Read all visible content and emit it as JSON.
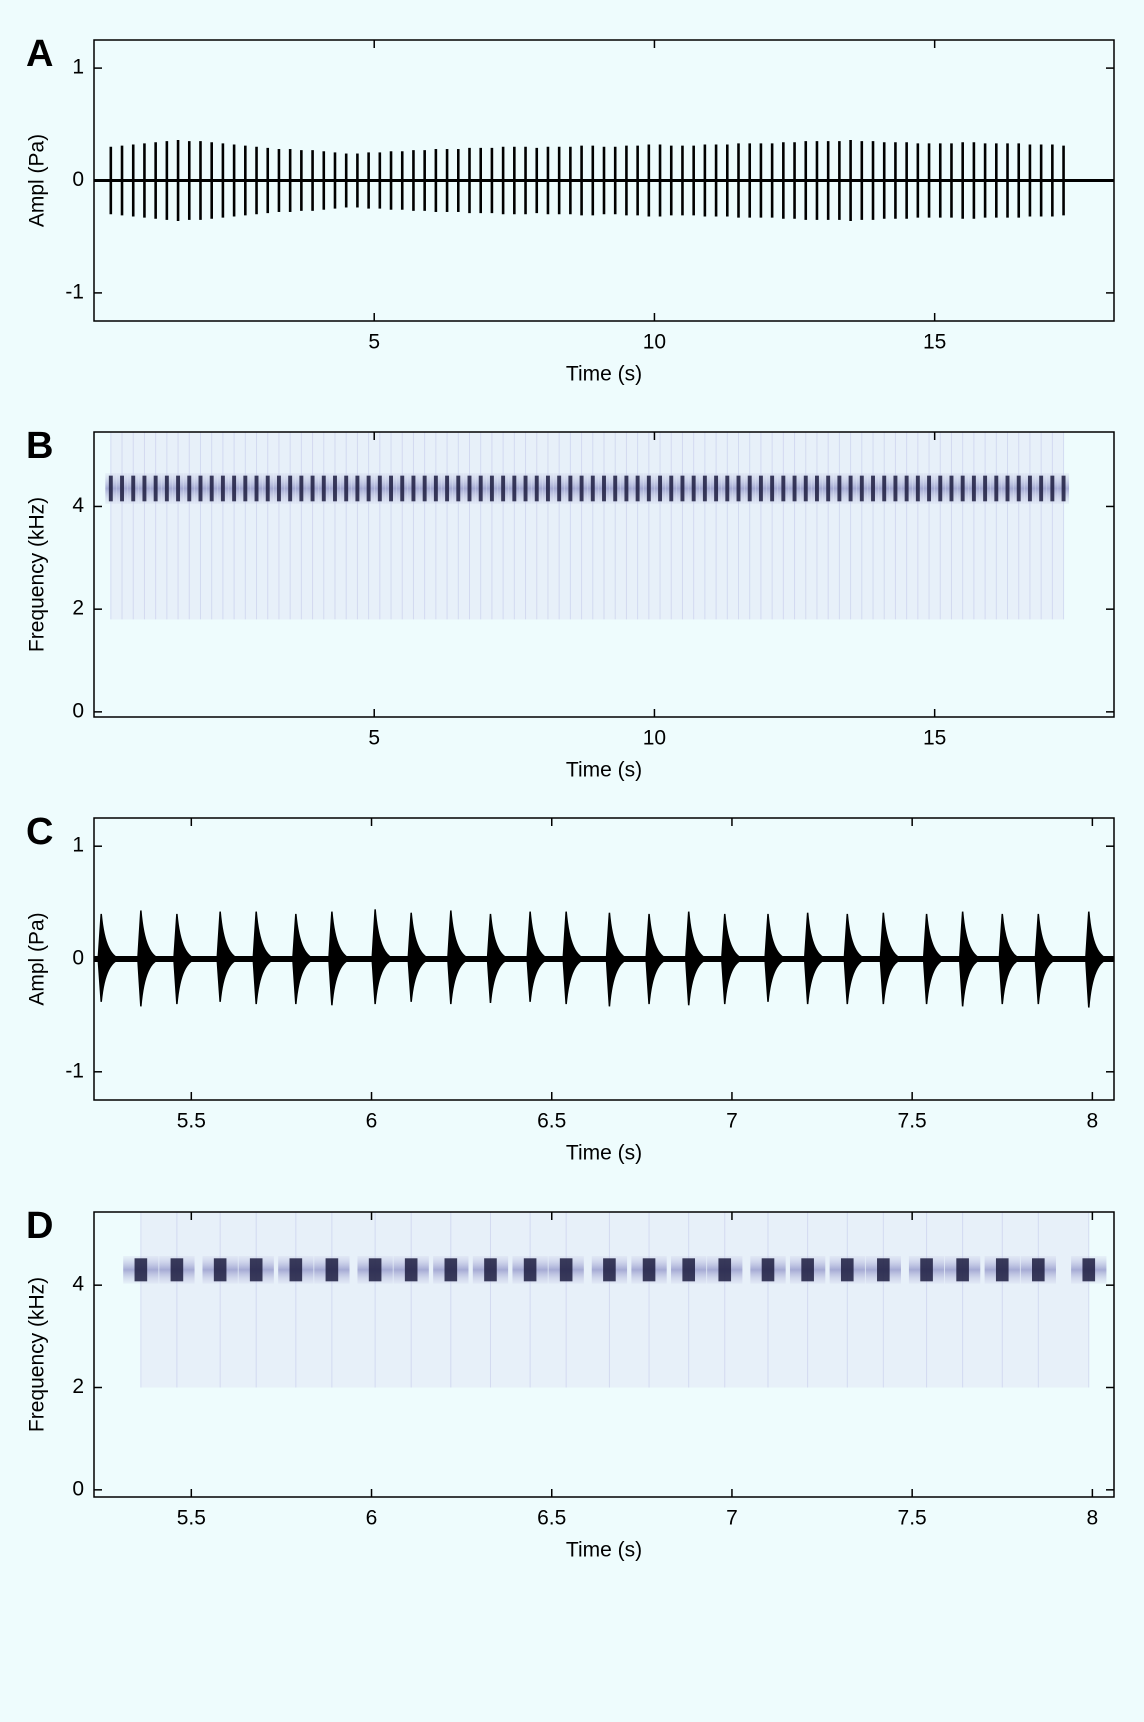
{
  "chart_data": [
    {
      "type": "waveform",
      "label": "A",
      "xlabel": "Time (s)",
      "ylabel": "Ampl (Pa)",
      "color": "#000000",
      "xlim": [
        0,
        18.2
      ],
      "ylim": [
        -1.25,
        1.25
      ],
      "xticks": [
        5,
        10,
        15
      ],
      "yticks": [
        -1,
        0,
        1
      ],
      "x": [
        0.3,
        0.5,
        0.7,
        0.9,
        1.1,
        1.3,
        1.5,
        1.7,
        1.9,
        2.1,
        2.3,
        2.5,
        2.7,
        2.9,
        3.1,
        3.3,
        3.5,
        3.7,
        3.9,
        4.1,
        4.3,
        4.5,
        4.7,
        4.9,
        5.1,
        5.3,
        5.5,
        5.7,
        5.9,
        6.1,
        6.3,
        6.5,
        6.7,
        6.9,
        7.1,
        7.3,
        7.5,
        7.7,
        7.9,
        8.1,
        8.3,
        8.5,
        8.7,
        8.9,
        9.1,
        9.3,
        9.5,
        9.7,
        9.9,
        10.1,
        10.3,
        10.5,
        10.7,
        10.9,
        11.1,
        11.3,
        11.5,
        11.7,
        11.9,
        12.1,
        12.3,
        12.5,
        12.7,
        12.9,
        13.1,
        13.3,
        13.5,
        13.7,
        13.9,
        14.1,
        14.3,
        14.5,
        14.7,
        14.9,
        15.1,
        15.3,
        15.5,
        15.7,
        15.9,
        16.1,
        16.3,
        16.5,
        16.7,
        16.9,
        17.1,
        17.3
      ],
      "values_max": [
        0.3,
        0.31,
        0.32,
        0.33,
        0.34,
        0.35,
        0.36,
        0.35,
        0.35,
        0.34,
        0.33,
        0.32,
        0.31,
        0.3,
        0.29,
        0.28,
        0.28,
        0.27,
        0.27,
        0.26,
        0.25,
        0.24,
        0.24,
        0.25,
        0.25,
        0.26,
        0.26,
        0.27,
        0.27,
        0.28,
        0.28,
        0.28,
        0.29,
        0.29,
        0.29,
        0.3,
        0.3,
        0.3,
        0.29,
        0.3,
        0.3,
        0.3,
        0.31,
        0.31,
        0.3,
        0.3,
        0.31,
        0.31,
        0.32,
        0.32,
        0.31,
        0.31,
        0.31,
        0.32,
        0.32,
        0.32,
        0.33,
        0.33,
        0.33,
        0.33,
        0.34,
        0.34,
        0.35,
        0.35,
        0.35,
        0.35,
        0.36,
        0.35,
        0.35,
        0.34,
        0.34,
        0.34,
        0.33,
        0.33,
        0.33,
        0.33,
        0.34,
        0.34,
        0.33,
        0.33,
        0.33,
        0.33,
        0.32,
        0.32,
        0.32,
        0.31
      ],
      "values_min": [
        -0.3,
        -0.31,
        -0.32,
        -0.33,
        -0.34,
        -0.35,
        -0.36,
        -0.35,
        -0.35,
        -0.34,
        -0.33,
        -0.32,
        -0.31,
        -0.3,
        -0.29,
        -0.28,
        -0.28,
        -0.27,
        -0.27,
        -0.26,
        -0.25,
        -0.24,
        -0.24,
        -0.25,
        -0.25,
        -0.26,
        -0.26,
        -0.27,
        -0.27,
        -0.28,
        -0.28,
        -0.28,
        -0.29,
        -0.29,
        -0.29,
        -0.3,
        -0.3,
        -0.3,
        -0.29,
        -0.3,
        -0.3,
        -0.3,
        -0.31,
        -0.31,
        -0.3,
        -0.3,
        -0.31,
        -0.31,
        -0.32,
        -0.32,
        -0.31,
        -0.31,
        -0.31,
        -0.32,
        -0.32,
        -0.32,
        -0.33,
        -0.33,
        -0.33,
        -0.33,
        -0.34,
        -0.34,
        -0.35,
        -0.35,
        -0.35,
        -0.35,
        -0.36,
        -0.35,
        -0.35,
        -0.34,
        -0.34,
        -0.34,
        -0.33,
        -0.33,
        -0.33,
        -0.33,
        -0.34,
        -0.34,
        -0.33,
        -0.33,
        -0.33,
        -0.33,
        -0.32,
        -0.32,
        -0.32,
        -0.31
      ]
    },
    {
      "type": "spectrogram",
      "label": "B",
      "xlabel": "Time (s)",
      "ylabel": "Frequency (kHz)",
      "color": "#1c1c40",
      "xlim": [
        0,
        18.2
      ],
      "ylim": [
        -0.1,
        5.45
      ],
      "xticks": [
        5,
        10,
        15
      ],
      "yticks": [
        0,
        2,
        4
      ],
      "bandwidth": 0.5,
      "noise_range": [
        1.8,
        5.45
      ],
      "x": [
        0.3,
        0.5,
        0.7,
        0.9,
        1.1,
        1.3,
        1.5,
        1.7,
        1.9,
        2.1,
        2.3,
        2.5,
        2.7,
        2.9,
        3.1,
        3.3,
        3.5,
        3.7,
        3.9,
        4.1,
        4.3,
        4.5,
        4.7,
        4.9,
        5.1,
        5.3,
        5.5,
        5.7,
        5.9,
        6.1,
        6.3,
        6.5,
        6.7,
        6.9,
        7.1,
        7.3,
        7.5,
        7.7,
        7.9,
        8.1,
        8.3,
        8.5,
        8.7,
        8.9,
        9.1,
        9.3,
        9.5,
        9.7,
        9.9,
        10.1,
        10.3,
        10.5,
        10.7,
        10.9,
        11.1,
        11.3,
        11.5,
        11.7,
        11.9,
        12.1,
        12.3,
        12.5,
        12.7,
        12.9,
        13.1,
        13.3,
        13.5,
        13.7,
        13.9,
        14.1,
        14.3,
        14.5,
        14.7,
        14.9,
        15.1,
        15.3,
        15.5,
        15.7,
        15.9,
        16.1,
        16.3,
        16.5,
        16.7,
        16.9,
        17.1,
        17.3
      ],
      "values": [
        4.35,
        4.35,
        4.35,
        4.35,
        4.35,
        4.35,
        4.35,
        4.35,
        4.35,
        4.35,
        4.35,
        4.35,
        4.35,
        4.35,
        4.35,
        4.35,
        4.35,
        4.35,
        4.35,
        4.35,
        4.35,
        4.35,
        4.35,
        4.35,
        4.35,
        4.35,
        4.35,
        4.35,
        4.35,
        4.35,
        4.35,
        4.35,
        4.35,
        4.35,
        4.35,
        4.35,
        4.35,
        4.35,
        4.35,
        4.35,
        4.35,
        4.35,
        4.35,
        4.35,
        4.35,
        4.35,
        4.35,
        4.35,
        4.35,
        4.35,
        4.35,
        4.35,
        4.35,
        4.35,
        4.35,
        4.35,
        4.35,
        4.35,
        4.35,
        4.35,
        4.35,
        4.35,
        4.35,
        4.35,
        4.35,
        4.35,
        4.35,
        4.35,
        4.35,
        4.35,
        4.35,
        4.35,
        4.35,
        4.35,
        4.35,
        4.35,
        4.35,
        4.35,
        4.35,
        4.35,
        4.35,
        4.35,
        4.35,
        4.35,
        4.35,
        4.35
      ]
    },
    {
      "type": "waveform",
      "label": "C",
      "xlabel": "Time (s)",
      "ylabel": "Ampl (Pa)",
      "color": "#000000",
      "xlim": [
        5.23,
        8.06
      ],
      "ylim": [
        -1.25,
        1.25
      ],
      "xticks": [
        5.5,
        6,
        6.5,
        7,
        7.5,
        8
      ],
      "yticks": [
        -1,
        0,
        1
      ],
      "x": [
        5.25,
        5.36,
        5.46,
        5.58,
        5.68,
        5.79,
        5.89,
        6.01,
        6.11,
        6.22,
        6.33,
        6.44,
        6.54,
        6.66,
        6.77,
        6.88,
        6.98,
        7.1,
        7.21,
        7.32,
        7.42,
        7.54,
        7.64,
        7.75,
        7.85,
        7.99
      ],
      "values_max": [
        0.4,
        0.43,
        0.4,
        0.42,
        0.42,
        0.4,
        0.42,
        0.44,
        0.41,
        0.43,
        0.4,
        0.42,
        0.42,
        0.41,
        0.4,
        0.42,
        0.4,
        0.4,
        0.41,
        0.4,
        0.41,
        0.4,
        0.42,
        0.4,
        0.4,
        0.42
      ],
      "values_min": [
        -0.38,
        -0.42,
        -0.4,
        -0.38,
        -0.4,
        -0.4,
        -0.41,
        -0.4,
        -0.38,
        -0.4,
        -0.39,
        -0.38,
        -0.4,
        -0.42,
        -0.4,
        -0.41,
        -0.4,
        -0.38,
        -0.4,
        -0.4,
        -0.4,
        -0.4,
        -0.42,
        -0.4,
        -0.4,
        -0.43
      ]
    },
    {
      "type": "spectrogram",
      "label": "D",
      "xlabel": "Time (s)",
      "ylabel": "Frequency (kHz)",
      "color": "#1c1c40",
      "xlim": [
        5.23,
        8.06
      ],
      "ylim": [
        -0.14,
        5.43
      ],
      "xticks": [
        5.5,
        6,
        6.5,
        7,
        7.5,
        8
      ],
      "yticks": [
        0,
        2,
        4
      ],
      "bandwidth": 0.45,
      "noise_range": [
        2.0,
        5.43
      ],
      "x": [
        5.36,
        5.46,
        5.58,
        5.68,
        5.79,
        5.89,
        6.01,
        6.11,
        6.22,
        6.33,
        6.44,
        6.54,
        6.66,
        6.77,
        6.88,
        6.98,
        7.1,
        7.21,
        7.32,
        7.42,
        7.54,
        7.64,
        7.75,
        7.85,
        7.99
      ],
      "values": [
        4.3,
        4.3,
        4.3,
        4.3,
        4.3,
        4.3,
        4.3,
        4.3,
        4.3,
        4.3,
        4.3,
        4.3,
        4.3,
        4.3,
        4.3,
        4.3,
        4.3,
        4.3,
        4.3,
        4.3,
        4.3,
        4.3,
        4.3,
        4.3,
        4.3
      ]
    }
  ]
}
